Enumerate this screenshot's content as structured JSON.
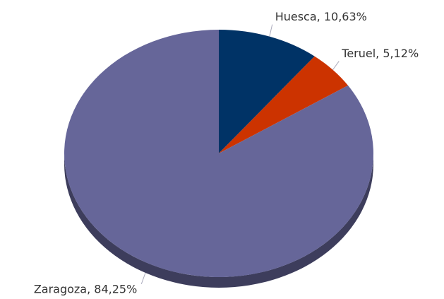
{
  "chart_data": {
    "type": "pie",
    "values": [
      10.63,
      5.12,
      84.25
    ],
    "value_labels": [
      "Huesca, 10,63%",
      "Teruel, 5,12%",
      "Zaragoza, 84,25%"
    ],
    "colors": [
      "#003366",
      "#cc3300",
      "#666699"
    ]
  }
}
